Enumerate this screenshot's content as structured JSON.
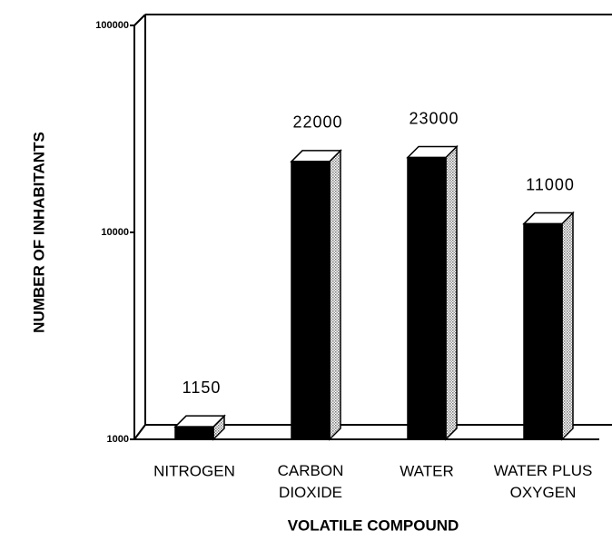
{
  "chart_data": {
    "type": "bar3d",
    "categories": [
      "NITROGEN",
      "CARBON\nDIOXIDE",
      "WATER",
      "WATER PLUS\nOXYGEN"
    ],
    "values": [
      1150,
      22000,
      23000,
      11000
    ],
    "color": "#000000",
    "y_label": "NUMBER OF INHABITANTS",
    "x_label": "VOLATILE COMPOUND",
    "ylim": [
      1000,
      100000
    ],
    "yticks": [
      1000,
      10000,
      100000
    ],
    "log_y": true
  }
}
